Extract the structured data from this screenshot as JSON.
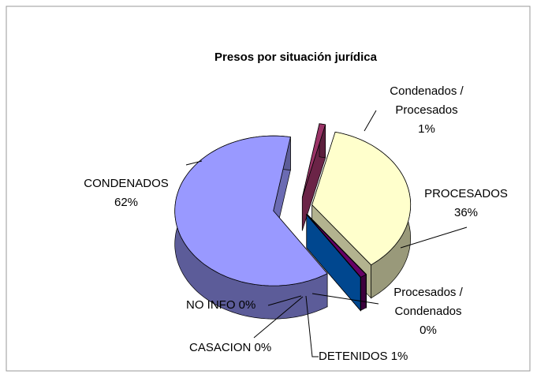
{
  "chart_data": {
    "type": "pie3d",
    "title": "Presos por situación jurídica",
    "categories": [
      "Condenados / Procesados",
      "PROCESADOS",
      "Procesados / Condenados",
      "DETENIDOS",
      "CASACION",
      "NO INFO",
      "CONDENADOS"
    ],
    "values": [
      1,
      36,
      0,
      1,
      0,
      0,
      62
    ],
    "value_labels": [
      "1%",
      "36%",
      "0%",
      "1%",
      "0%",
      "0%",
      "62%"
    ],
    "colors": [
      "#993366",
      "#ffffcc",
      "#ccffff",
      "#660066",
      "#ff8080",
      "#0066cc",
      "#9999ff"
    ]
  }
}
